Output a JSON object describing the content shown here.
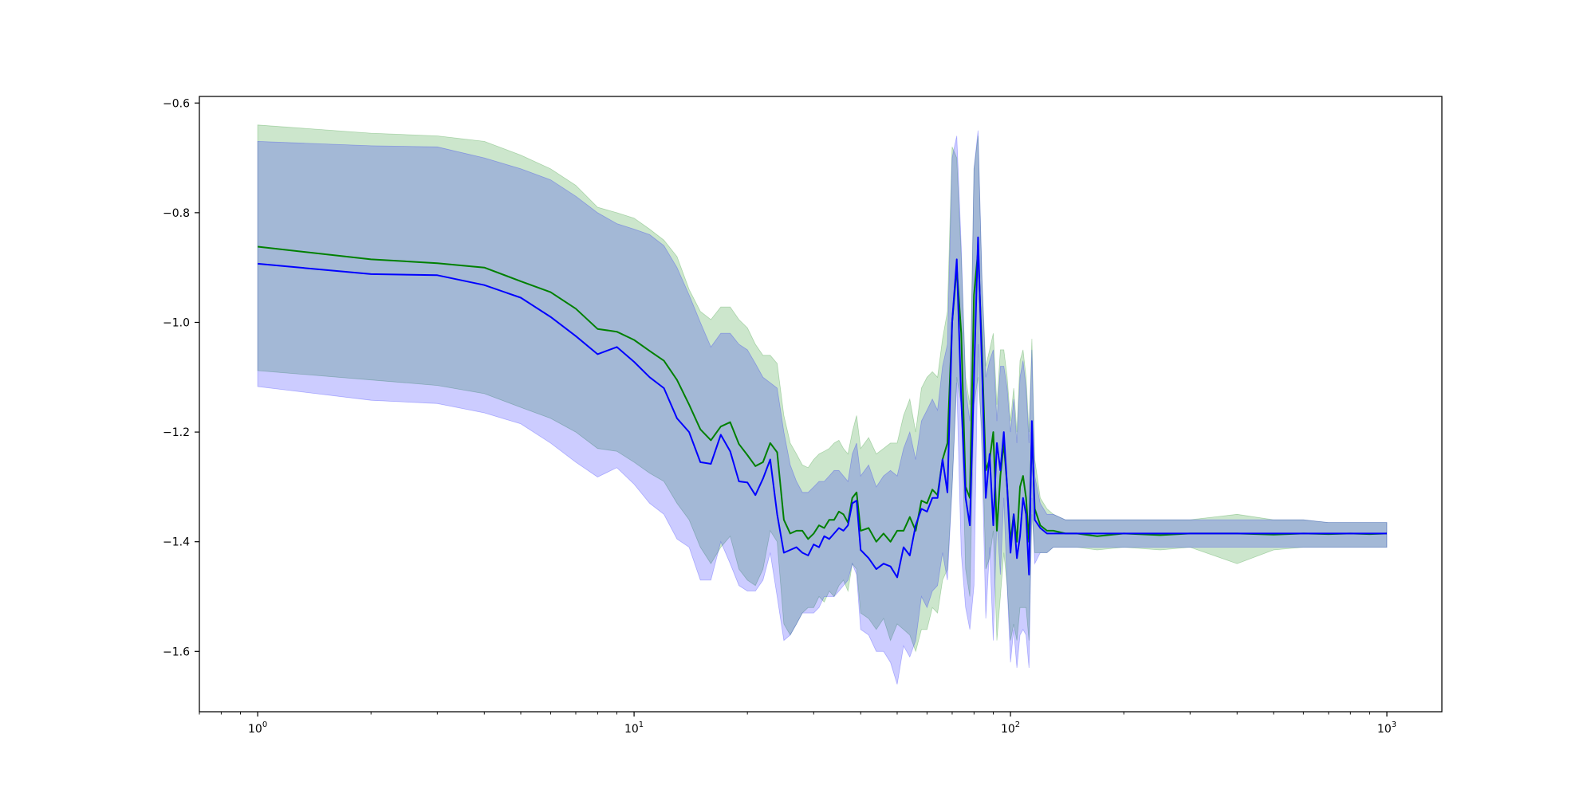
{
  "chart_data": {
    "type": "line",
    "title": "",
    "xlabel": "",
    "ylabel": "",
    "xscale": "log",
    "xlim": [
      0.7,
      1400
    ],
    "ylim": [
      -1.71,
      -0.588
    ],
    "grid": false,
    "legend": "none",
    "x_ticks": [
      {
        "value": 1,
        "base": "10",
        "exp": "0"
      },
      {
        "value": 10,
        "base": "10",
        "exp": "1"
      },
      {
        "value": 100,
        "base": "10",
        "exp": "2"
      },
      {
        "value": 1000,
        "base": "10",
        "exp": "3"
      }
    ],
    "y_ticks": [
      {
        "value": -0.6,
        "label": "−0.6"
      },
      {
        "value": -0.8,
        "label": "−0.8"
      },
      {
        "value": -1.0,
        "label": "−1.0"
      },
      {
        "value": -1.2,
        "label": "−1.2"
      },
      {
        "value": -1.4,
        "label": "−1.4"
      },
      {
        "value": -1.6,
        "label": "−1.6"
      }
    ],
    "series": [
      {
        "color": "#008000",
        "band_color": "#008000",
        "band_opacity": 0.2,
        "x": [
          1,
          2,
          3,
          4,
          5,
          6,
          7,
          8,
          9,
          10,
          11,
          12,
          13,
          14,
          15,
          16,
          17,
          18,
          19,
          20,
          21,
          22,
          23,
          24,
          25,
          26,
          27,
          28,
          29,
          30,
          31,
          32,
          33,
          34,
          35,
          36,
          37,
          38,
          39,
          40,
          42,
          44,
          46,
          48,
          50,
          52,
          54,
          56,
          58,
          60,
          62,
          64,
          66,
          68,
          70,
          72,
          74,
          76,
          78,
          80,
          82,
          84,
          86,
          88,
          90,
          92,
          94,
          96,
          98,
          100,
          102,
          104,
          106,
          108,
          110,
          112,
          114,
          116,
          120,
          125,
          130,
          140,
          150,
          170,
          200,
          250,
          300,
          400,
          500,
          600,
          700,
          800,
          900,
          1000
        ],
        "mean": [
          -0.862,
          -0.885,
          -0.892,
          -0.9,
          -0.925,
          -0.945,
          -0.975,
          -1.012,
          -1.017,
          -1.032,
          -1.052,
          -1.07,
          -1.105,
          -1.15,
          -1.195,
          -1.215,
          -1.19,
          -1.182,
          -1.222,
          -1.242,
          -1.262,
          -1.255,
          -1.22,
          -1.237,
          -1.36,
          -1.385,
          -1.38,
          -1.38,
          -1.395,
          -1.385,
          -1.37,
          -1.375,
          -1.36,
          -1.36,
          -1.345,
          -1.35,
          -1.365,
          -1.32,
          -1.31,
          -1.38,
          -1.375,
          -1.4,
          -1.385,
          -1.4,
          -1.38,
          -1.38,
          -1.355,
          -1.38,
          -1.325,
          -1.33,
          -1.305,
          -1.315,
          -1.25,
          -1.22,
          -1.0,
          -0.9,
          -1.02,
          -1.3,
          -1.32,
          -0.95,
          -0.87,
          -1.05,
          -1.27,
          -1.25,
          -1.2,
          -1.38,
          -1.28,
          -1.22,
          -1.3,
          -1.4,
          -1.35,
          -1.4,
          -1.3,
          -1.28,
          -1.32,
          -1.4,
          -1.2,
          -1.34,
          -1.37,
          -1.38,
          -1.38,
          -1.385,
          -1.385,
          -1.39,
          -1.385,
          -1.388,
          -1.385,
          -1.385,
          -1.387,
          -1.385,
          -1.386,
          -1.385,
          -1.386,
          -1.385
        ],
        "upper": [
          -0.64,
          -0.655,
          -0.66,
          -0.67,
          -0.695,
          -0.72,
          -0.75,
          -0.79,
          -0.8,
          -0.81,
          -0.83,
          -0.85,
          -0.88,
          -0.94,
          -0.98,
          -0.995,
          -0.972,
          -0.972,
          -0.995,
          -1.01,
          -1.04,
          -1.06,
          -1.06,
          -1.075,
          -1.17,
          -1.22,
          -1.24,
          -1.26,
          -1.265,
          -1.25,
          -1.24,
          -1.235,
          -1.23,
          -1.22,
          -1.215,
          -1.23,
          -1.24,
          -1.2,
          -1.17,
          -1.23,
          -1.21,
          -1.24,
          -1.23,
          -1.22,
          -1.22,
          -1.17,
          -1.14,
          -1.2,
          -1.12,
          -1.1,
          -1.09,
          -1.1,
          -1.03,
          -0.98,
          -0.68,
          -0.7,
          -0.88,
          -1.1,
          -1.15,
          -0.72,
          -0.66,
          -0.92,
          -1.08,
          -1.05,
          -1.02,
          -1.15,
          -1.05,
          -1.05,
          -1.1,
          -1.18,
          -1.12,
          -1.2,
          -1.07,
          -1.05,
          -1.1,
          -1.2,
          -1.03,
          -1.25,
          -1.32,
          -1.34,
          -1.35,
          -1.36,
          -1.36,
          -1.36,
          -1.36,
          -1.36,
          -1.36,
          -1.35,
          -1.36,
          -1.36,
          -1.365,
          -1.365,
          -1.365,
          -1.365
        ],
        "lower": [
          -1.088,
          -1.105,
          -1.115,
          -1.13,
          -1.155,
          -1.175,
          -1.2,
          -1.23,
          -1.235,
          -1.255,
          -1.275,
          -1.29,
          -1.33,
          -1.36,
          -1.41,
          -1.44,
          -1.41,
          -1.39,
          -1.45,
          -1.47,
          -1.48,
          -1.45,
          -1.38,
          -1.4,
          -1.55,
          -1.57,
          -1.55,
          -1.53,
          -1.52,
          -1.52,
          -1.5,
          -1.51,
          -1.49,
          -1.5,
          -1.48,
          -1.47,
          -1.49,
          -1.44,
          -1.45,
          -1.53,
          -1.54,
          -1.56,
          -1.54,
          -1.58,
          -1.55,
          -1.56,
          -1.57,
          -1.6,
          -1.56,
          -1.56,
          -1.52,
          -1.53,
          -1.47,
          -1.45,
          -1.3,
          -1.1,
          -1.15,
          -1.45,
          -1.5,
          -1.15,
          -1.1,
          -1.2,
          -1.45,
          -1.43,
          -1.38,
          -1.58,
          -1.5,
          -1.42,
          -1.48,
          -1.58,
          -1.55,
          -1.58,
          -1.52,
          -1.52,
          -1.52,
          -1.58,
          -1.35,
          -1.42,
          -1.42,
          -1.42,
          -1.41,
          -1.41,
          -1.41,
          -1.415,
          -1.41,
          -1.415,
          -1.41,
          -1.44,
          -1.415,
          -1.41,
          -1.41,
          -1.41,
          -1.41,
          -1.41
        ]
      },
      {
        "color": "#0000ff",
        "band_color": "#0000ff",
        "band_opacity": 0.2,
        "x": [
          1,
          2,
          3,
          4,
          5,
          6,
          7,
          8,
          9,
          10,
          11,
          12,
          13,
          14,
          15,
          16,
          17,
          18,
          19,
          20,
          21,
          22,
          23,
          24,
          25,
          26,
          27,
          28,
          29,
          30,
          31,
          32,
          33,
          34,
          35,
          36,
          37,
          38,
          39,
          40,
          42,
          44,
          46,
          48,
          50,
          52,
          54,
          56,
          58,
          60,
          62,
          64,
          66,
          68,
          70,
          72,
          74,
          76,
          78,
          80,
          82,
          84,
          86,
          88,
          90,
          92,
          94,
          96,
          98,
          100,
          102,
          104,
          106,
          108,
          110,
          112,
          114,
          116,
          120,
          125,
          130,
          140,
          150,
          170,
          200,
          250,
          300,
          400,
          500,
          600,
          700,
          800,
          900,
          1000
        ],
        "mean": [
          -0.893,
          -0.912,
          -0.914,
          -0.932,
          -0.955,
          -0.99,
          -1.025,
          -1.058,
          -1.045,
          -1.072,
          -1.1,
          -1.12,
          -1.175,
          -1.2,
          -1.255,
          -1.258,
          -1.205,
          -1.235,
          -1.29,
          -1.292,
          -1.315,
          -1.285,
          -1.25,
          -1.35,
          -1.42,
          -1.415,
          -1.41,
          -1.42,
          -1.425,
          -1.405,
          -1.41,
          -1.39,
          -1.395,
          -1.385,
          -1.375,
          -1.38,
          -1.37,
          -1.33,
          -1.325,
          -1.415,
          -1.43,
          -1.45,
          -1.44,
          -1.445,
          -1.465,
          -1.41,
          -1.425,
          -1.37,
          -1.34,
          -1.345,
          -1.32,
          -1.32,
          -1.25,
          -1.31,
          -1.0,
          -0.885,
          -1.14,
          -1.32,
          -1.37,
          -1.1,
          -0.845,
          -1.08,
          -1.32,
          -1.24,
          -1.37,
          -1.22,
          -1.27,
          -1.2,
          -1.3,
          -1.42,
          -1.35,
          -1.43,
          -1.39,
          -1.32,
          -1.35,
          -1.46,
          -1.18,
          -1.36,
          -1.375,
          -1.385,
          -1.385,
          -1.385,
          -1.385,
          -1.385,
          -1.385,
          -1.385,
          -1.385,
          -1.385,
          -1.385,
          -1.385,
          -1.385,
          -1.385,
          -1.385,
          -1.385
        ],
        "upper": [
          -0.67,
          -0.678,
          -0.68,
          -0.7,
          -0.72,
          -0.74,
          -0.77,
          -0.8,
          -0.82,
          -0.83,
          -0.84,
          -0.86,
          -0.9,
          -0.95,
          -1.0,
          -1.045,
          -1.02,
          -1.02,
          -1.04,
          -1.05,
          -1.075,
          -1.1,
          -1.11,
          -1.12,
          -1.2,
          -1.26,
          -1.29,
          -1.31,
          -1.31,
          -1.3,
          -1.29,
          -1.29,
          -1.28,
          -1.27,
          -1.27,
          -1.28,
          -1.29,
          -1.24,
          -1.22,
          -1.28,
          -1.26,
          -1.3,
          -1.28,
          -1.27,
          -1.28,
          -1.23,
          -1.2,
          -1.25,
          -1.18,
          -1.16,
          -1.14,
          -1.16,
          -1.08,
          -1.04,
          -0.7,
          -0.66,
          -0.86,
          -1.12,
          -1.18,
          -0.72,
          -0.65,
          -0.92,
          -1.1,
          -1.07,
          -1.05,
          -1.18,
          -1.08,
          -1.08,
          -1.12,
          -1.2,
          -1.14,
          -1.22,
          -1.1,
          -1.07,
          -1.12,
          -1.22,
          -1.05,
          -1.28,
          -1.33,
          -1.35,
          -1.35,
          -1.36,
          -1.36,
          -1.36,
          -1.36,
          -1.36,
          -1.36,
          -1.36,
          -1.36,
          -1.36,
          -1.365,
          -1.365,
          -1.365,
          -1.365
        ],
        "lower": [
          -1.117,
          -1.142,
          -1.148,
          -1.165,
          -1.185,
          -1.22,
          -1.255,
          -1.282,
          -1.265,
          -1.295,
          -1.33,
          -1.35,
          -1.395,
          -1.41,
          -1.47,
          -1.47,
          -1.4,
          -1.44,
          -1.48,
          -1.49,
          -1.49,
          -1.47,
          -1.42,
          -1.5,
          -1.58,
          -1.57,
          -1.55,
          -1.53,
          -1.53,
          -1.53,
          -1.52,
          -1.5,
          -1.5,
          -1.5,
          -1.49,
          -1.48,
          -1.47,
          -1.44,
          -1.46,
          -1.56,
          -1.57,
          -1.6,
          -1.6,
          -1.62,
          -1.66,
          -1.59,
          -1.61,
          -1.58,
          -1.5,
          -1.52,
          -1.49,
          -1.48,
          -1.42,
          -1.47,
          -1.3,
          -1.11,
          -1.42,
          -1.52,
          -1.56,
          -1.48,
          -1.04,
          -1.24,
          -1.54,
          -1.41,
          -1.58,
          -1.36,
          -1.46,
          -1.32,
          -1.48,
          -1.62,
          -1.56,
          -1.63,
          -1.57,
          -1.56,
          -1.57,
          -1.63,
          -1.32,
          -1.44,
          -1.42,
          -1.42,
          -1.41,
          -1.41,
          -1.41,
          -1.41,
          -1.41,
          -1.41,
          -1.41,
          -1.41,
          -1.41,
          -1.41,
          -1.41,
          -1.41,
          -1.41,
          -1.41
        ]
      }
    ]
  }
}
